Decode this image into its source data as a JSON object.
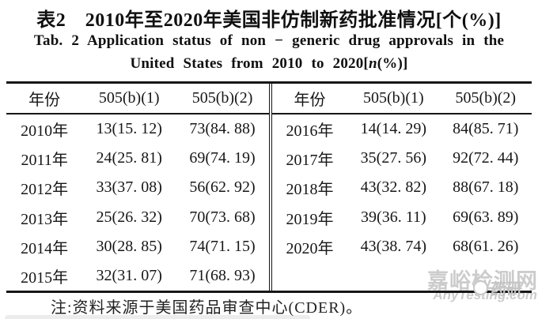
{
  "title": {
    "zh": "表2　2010年至2020年美国非仿制新药批准情况[个(%)]",
    "en_line1": "Tab. 2  Application status of non − generic drug approvals in the",
    "en_line2_pre": "United States from 2010 to 2020[",
    "en_line2_italic": "n",
    "en_line2_post": "(%)]"
  },
  "table": {
    "headers": [
      "年份",
      "505(b)(1)",
      "505(b)(2)"
    ],
    "left_rows": [
      [
        "2010年",
        "13(15. 12)",
        "73(84. 88)"
      ],
      [
        "2011年",
        "24(25. 81)",
        "69(74. 19)"
      ],
      [
        "2012年",
        "33(37. 08)",
        "56(62. 92)"
      ],
      [
        "2013年",
        "25(26. 32)",
        "70(73. 68)"
      ],
      [
        "2014年",
        "30(28. 85)",
        "74(71. 15)"
      ],
      [
        "2015年",
        "32(31. 07)",
        "71(68. 93)"
      ]
    ],
    "right_rows": [
      [
        "2016年",
        "14(14. 29)",
        "84(85. 71)"
      ],
      [
        "2017年",
        "35(27. 56)",
        "92(72. 44)"
      ],
      [
        "2018年",
        "43(32. 82)",
        "88(67. 18)"
      ],
      [
        "2019年",
        "39(36. 11)",
        "69(63. 89)"
      ],
      [
        "2020年",
        "43(38. 74)",
        "68(61. 26)"
      ],
      [
        "",
        "",
        ""
      ]
    ]
  },
  "note": {
    "text": "注:资料来源于美国药品审查中心(CDER)。"
  },
  "watermark": {
    "site_zh": "嘉峪检测网",
    "site_en": "AnyTesting.com",
    "badge_text": "药研",
    "color": "#cccccc"
  },
  "chart_data": {
    "type": "table",
    "title": "2010年至2020年美国非仿制新药批准情况[个(%)]",
    "columns": [
      "年份",
      "505(b)(1)",
      "505(b)(2)"
    ],
    "rows": [
      [
        "2010",
        "13 (15.12%)",
        "73 (84.88%)"
      ],
      [
        "2011",
        "24 (25.81%)",
        "69 (74.19%)"
      ],
      [
        "2012",
        "33 (37.08%)",
        "56 (62.92%)"
      ],
      [
        "2013",
        "25 (26.32%)",
        "70 (73.68%)"
      ],
      [
        "2014",
        "30 (28.85%)",
        "74 (71.15%)"
      ],
      [
        "2015",
        "32 (31.07%)",
        "71 (68.93%)"
      ],
      [
        "2016",
        "14 (14.29%)",
        "84 (85.71%)"
      ],
      [
        "2017",
        "35 (27.56%)",
        "92 (72.44%)"
      ],
      [
        "2018",
        "43 (32.82%)",
        "88 (67.18%)"
      ],
      [
        "2019",
        "39 (36.11%)",
        "69 (63.89%)"
      ],
      [
        "2020",
        "43 (38.74%)",
        "68 (61.26%)"
      ]
    ]
  }
}
